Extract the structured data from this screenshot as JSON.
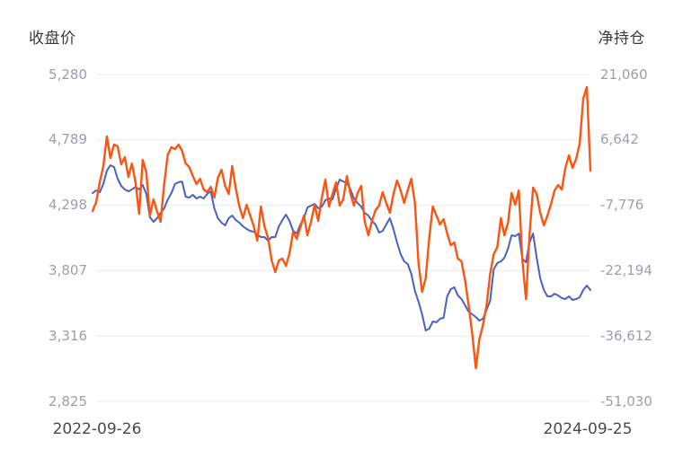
{
  "chart_data": {
    "type": "line",
    "title": "",
    "legend_position": "none",
    "grid": true,
    "colors": {
      "close_line": "#4a61c4",
      "position_line": "#fb5511",
      "gridline": "#e7ebf1",
      "tick_text": "#9b9fa8",
      "axis_title_text": "#3a3a3a",
      "date_text": "#4a4a4a",
      "background": "#ffffff"
    },
    "left_axis": {
      "title": "收盘价",
      "tick_labels": [
        "5,280",
        "4,789",
        "4,298",
        "3,807",
        "3,316",
        "2,825"
      ],
      "tick_values": [
        5280,
        4789,
        4298,
        3807,
        3316,
        2825
      ],
      "ylim": [
        2825,
        5280
      ]
    },
    "right_axis": {
      "title": "净持仓",
      "tick_labels": [
        "21,060",
        "6,642",
        "-7,776",
        "-22,194",
        "-36,612",
        "-51,030"
      ],
      "tick_values": [
        21060,
        6642,
        -7776,
        -22194,
        -36612,
        -51030
      ],
      "ylim": [
        -51030,
        21060
      ]
    },
    "x_axis": {
      "first_label": "2022-09-26",
      "last_label": "2024-09-25"
    },
    "series": [
      {
        "name": "收盘价",
        "axis": "left",
        "color": "#4a61c4",
        "stroke_width": 2,
        "values": [
          4390,
          4410,
          4396,
          4457,
          4558,
          4599,
          4585,
          4498,
          4444,
          4417,
          4403,
          4417,
          4437,
          4417,
          4450,
          4383,
          4208,
          4174,
          4201,
          4241,
          4275,
          4342,
          4390,
          4457,
          4471,
          4477,
          4363,
          4356,
          4376,
          4349,
          4363,
          4349,
          4383,
          4403,
          4275,
          4201,
          4167,
          4147,
          4201,
          4221,
          4187,
          4167,
          4140,
          4120,
          4106,
          4100,
          4079,
          4059,
          4059,
          4032,
          4059,
          4059,
          4140,
          4187,
          4228,
          4180,
          4106,
          4086,
          4154,
          4201,
          4282,
          4295,
          4309,
          4275,
          4288,
          4336,
          4349,
          4342,
          4423,
          4491,
          4477,
          4464,
          4417,
          4349,
          4315,
          4288,
          4241,
          4221,
          4180,
          4154,
          4093,
          4106,
          4154,
          4201,
          4120,
          4019,
          3931,
          3877,
          3857,
          3783,
          3655,
          3574,
          3479,
          3358,
          3371,
          3425,
          3419,
          3446,
          3452,
          3614,
          3668,
          3682,
          3621,
          3594,
          3547,
          3499,
          3479,
          3459,
          3432,
          3446,
          3513,
          3581,
          3817,
          3864,
          3877,
          3904,
          3972,
          4073,
          4066,
          4086,
          3897,
          3870,
          4019,
          4086,
          3904,
          3749,
          3661,
          3614,
          3614,
          3634,
          3621,
          3601,
          3594,
          3614,
          3587,
          3594,
          3607,
          3661,
          3695,
          3661
        ]
      },
      {
        "name": "净持仓",
        "axis": "right",
        "color": "#fb5511",
        "stroke_width": 2.4,
        "values": [
          -9040,
          -7060,
          -2710,
          860,
          7390,
          2640,
          5610,
          5220,
          1260,
          2840,
          -1520,
          1450,
          -2710,
          -9640,
          2250,
          -530,
          -10030,
          -6470,
          -9040,
          -11420,
          -3100,
          3430,
          5020,
          4620,
          5610,
          4230,
          1450,
          660,
          -1320,
          -3100,
          -1910,
          -4290,
          -4890,
          -3700,
          -6070,
          -1720,
          70,
          -3500,
          -5280,
          860,
          -4090,
          -8050,
          -10630,
          -7660,
          -10030,
          -12410,
          -15580,
          -8050,
          -12410,
          -14990,
          -19940,
          -22510,
          -19940,
          -19540,
          -21130,
          -18350,
          -13600,
          -15180,
          -12610,
          -10030,
          -14390,
          -11420,
          -7660,
          -11220,
          -6070,
          -2110,
          -8050,
          -5280,
          -2710,
          -7860,
          -6470,
          -1320,
          -5280,
          -7860,
          -5080,
          -3500,
          -11420,
          -14390,
          -11220,
          -8850,
          -7860,
          -4890,
          -7260,
          -9440,
          -5280,
          -2310,
          -4490,
          -7260,
          -4490,
          -1910,
          -7260,
          -20530,
          -26870,
          -23900,
          -14990,
          -8050,
          -10030,
          -12010,
          -10830,
          -14000,
          -16570,
          -15980,
          -19540,
          -20130,
          -24290,
          -29840,
          -36180,
          -43700,
          -37370,
          -34200,
          -29840,
          -22910,
          -18550,
          -16970,
          -10630,
          -14390,
          -11620,
          -5080,
          -7660,
          -4490,
          -19940,
          -28450,
          -14390,
          -3890,
          -5280,
          -9440,
          -12210,
          -10030,
          -7460,
          -4490,
          -3300,
          -4290,
          460,
          3240,
          460,
          2440,
          5810,
          15710,
          18290,
          -130
        ]
      }
    ]
  }
}
